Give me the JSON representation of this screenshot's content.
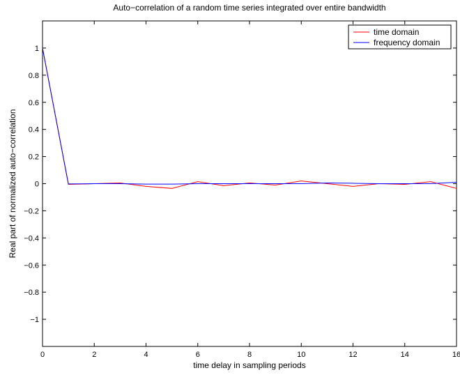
{
  "chart_data": {
    "type": "line",
    "title": "Auto−correlation of a random time series integrated over entire bandwidth",
    "xlabel": "time delay in sampling periods",
    "ylabel": "Real part of normalized auto−correlation",
    "xlim": [
      0,
      16
    ],
    "ylim": [
      -1.2,
      1.2
    ],
    "xticks": [
      0,
      2,
      4,
      6,
      8,
      10,
      12,
      14,
      16
    ],
    "xtick_labels": [
      "0",
      "2",
      "4",
      "6",
      "8",
      "10",
      "12",
      "14",
      "16"
    ],
    "yticks": [
      1,
      0.8,
      0.6,
      0.4,
      0.2,
      0,
      -0.2,
      -0.4,
      -0.6,
      -0.8,
      -1
    ],
    "ytick_labels": [
      "1",
      "0.8",
      "0.6",
      "0.4",
      "0.2",
      "0",
      "−0.2",
      "−0.4",
      "−0.6",
      "−0.8",
      "−1"
    ],
    "grid": false,
    "legend_position": "top-right",
    "series": [
      {
        "name": "time domain",
        "color": "#ff0000",
        "x": [
          0,
          1,
          2,
          3,
          4,
          5,
          6,
          7,
          8,
          9,
          10,
          11,
          12,
          13,
          14,
          15,
          16
        ],
        "y": [
          1,
          -0.005,
          0.0,
          0.005,
          -0.02,
          -0.035,
          0.015,
          -0.015,
          0.005,
          -0.01,
          0.02,
          0.0,
          -0.02,
          0.0,
          -0.005,
          0.015,
          -0.035
        ]
      },
      {
        "name": "frequency domain",
        "color": "#0000ff",
        "x": [
          0,
          1,
          2,
          3,
          4,
          5,
          6,
          7,
          8,
          9,
          10,
          11,
          12,
          13,
          14,
          15,
          16
        ],
        "y": [
          1,
          -0.002,
          0.0,
          0.0,
          -0.003,
          -0.003,
          0.0,
          0.0,
          0.0,
          0.0,
          0.0,
          0.005,
          0.003,
          0.0,
          0.0,
          0.0,
          0.01
        ]
      }
    ]
  }
}
